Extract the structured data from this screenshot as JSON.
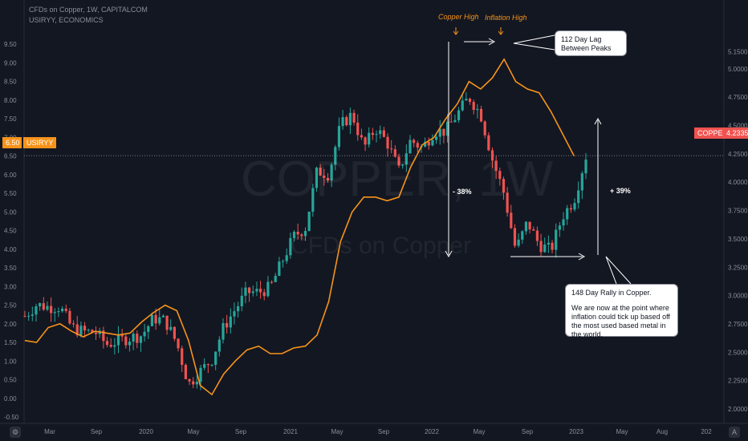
{
  "header": {
    "main_title": "CFDs on Copper, 1W, CAPITALCOM",
    "secondary_title": "USIRYY, ECONOMICS"
  },
  "watermark": {
    "symbol": "COPPER, 1W",
    "description": "CFDs on Copper"
  },
  "price_tags": {
    "left": {
      "label": "6.50",
      "symbol": "USIRYY",
      "color": "#f7931a"
    },
    "right": {
      "label": "COPPER",
      "value": "4.2335",
      "color": "#ef5350"
    }
  },
  "annotations": {
    "copper_high": "Copper High",
    "inflation_high": "Inflation High",
    "lag_callout": "112 Day Lag Between Peaks",
    "drop_pct": "- 38%",
    "rally_pct": "+ 39%",
    "rally_callout_line1": "148 Day Rally in Copper.",
    "rally_callout_line2": "We are now at the point where inflation could tick up based off the most used based metal in the world."
  },
  "corner_buttons": {
    "settings": "⚙",
    "auto": "A"
  },
  "colors": {
    "background": "#131722",
    "up_candle": "#26a69a",
    "down_candle": "#ef5350",
    "inflation_line": "#f7931a",
    "text": "#b2b5be"
  },
  "chart_data": {
    "type": "line",
    "title": "CFDs on Copper, 1W, CAPITALCOM",
    "x_ticks": [
      "Mar",
      "Sep",
      "2020",
      "May",
      "Sep",
      "2021",
      "May",
      "Sep",
      "2022",
      "May",
      "Sep",
      "2023",
      "May",
      "Aug",
      "202"
    ],
    "left_axis": {
      "label": "USIRYY",
      "range": [
        -0.5,
        10.0
      ],
      "ticks": [
        "9.50",
        "9.00",
        "8.50",
        "8.00",
        "7.50",
        "7.00",
        "6.50",
        "6.00",
        "5.50",
        "5.00",
        "4.50",
        "4.00",
        "3.50",
        "3.00",
        "2.50",
        "2.00",
        "1.50",
        "1.00",
        "0.50",
        "0.00",
        "-0.50"
      ]
    },
    "right_axis": {
      "label": "COPPER",
      "range": [
        1.93,
        5.38
      ],
      "ticks": [
        "5.1500",
        "5.0000",
        "4.7500",
        "4.5000",
        "4.2500",
        "4.0000",
        "3.7500",
        "3.5000",
        "3.2500",
        "3.0000",
        "2.7500",
        "2.5000",
        "2.2500",
        "2.0000"
      ]
    },
    "series": [
      {
        "name": "USIRYY",
        "axis": "left",
        "color": "#f7931a",
        "points": [
          [
            "2019-01",
            1.55
          ],
          [
            "2019-02",
            1.5
          ],
          [
            "2019-03",
            1.9
          ],
          [
            "2019-04",
            2.0
          ],
          [
            "2019-05",
            1.8
          ],
          [
            "2019-06",
            1.65
          ],
          [
            "2019-07",
            1.8
          ],
          [
            "2019-08",
            1.75
          ],
          [
            "2019-09",
            1.7
          ],
          [
            "2019-10",
            1.75
          ],
          [
            "2019-11",
            2.05
          ],
          [
            "2019-12",
            2.3
          ],
          [
            "2020-01",
            2.5
          ],
          [
            "2020-02",
            2.35
          ],
          [
            "2020-03",
            1.55
          ],
          [
            "2020-04",
            0.35
          ],
          [
            "2020-05",
            0.1
          ],
          [
            "2020-06",
            0.65
          ],
          [
            "2020-07",
            1.0
          ],
          [
            "2020-08",
            1.3
          ],
          [
            "2020-09",
            1.4
          ],
          [
            "2020-10",
            1.2
          ],
          [
            "2020-11",
            1.2
          ],
          [
            "2020-12",
            1.35
          ],
          [
            "2021-01",
            1.4
          ],
          [
            "2021-02",
            1.7
          ],
          [
            "2021-03",
            2.6
          ],
          [
            "2021-04",
            4.2
          ],
          [
            "2021-05",
            5.0
          ],
          [
            "2021-06",
            5.4
          ],
          [
            "2021-07",
            5.4
          ],
          [
            "2021-08",
            5.3
          ],
          [
            "2021-09",
            5.4
          ],
          [
            "2021-10",
            6.2
          ],
          [
            "2021-11",
            6.8
          ],
          [
            "2021-12",
            7.0
          ],
          [
            "2022-01",
            7.5
          ],
          [
            "2022-02",
            7.9
          ],
          [
            "2022-03",
            8.5
          ],
          [
            "2022-04",
            8.3
          ],
          [
            "2022-05",
            8.6
          ],
          [
            "2022-06",
            9.1
          ],
          [
            "2022-07",
            8.5
          ],
          [
            "2022-08",
            8.3
          ],
          [
            "2022-09",
            8.2
          ],
          [
            "2022-10",
            7.7
          ],
          [
            "2022-11",
            7.1
          ],
          [
            "2022-12",
            6.5
          ]
        ]
      },
      {
        "name": "COPPER",
        "axis": "right",
        "color": "#26a69a",
        "last_value": 4.2335,
        "points": [
          [
            "2019-01",
            2.82
          ],
          [
            "2019-02",
            2.92
          ],
          [
            "2019-03",
            2.9
          ],
          [
            "2019-04",
            2.9
          ],
          [
            "2019-05",
            2.72
          ],
          [
            "2019-06",
            2.68
          ],
          [
            "2019-07",
            2.68
          ],
          [
            "2019-08",
            2.57
          ],
          [
            "2019-09",
            2.6
          ],
          [
            "2019-10",
            2.63
          ],
          [
            "2019-11",
            2.65
          ],
          [
            "2019-12",
            2.8
          ],
          [
            "2020-01",
            2.78
          ],
          [
            "2020-02",
            2.58
          ],
          [
            "2020-03",
            2.22
          ],
          [
            "2020-04",
            2.33
          ],
          [
            "2020-05",
            2.44
          ],
          [
            "2020-06",
            2.72
          ],
          [
            "2020-07",
            2.88
          ],
          [
            "2020-08",
            3.03
          ],
          [
            "2020-09",
            3.03
          ],
          [
            "2020-10",
            3.07
          ],
          [
            "2020-11",
            3.3
          ],
          [
            "2020-12",
            3.52
          ],
          [
            "2021-01",
            3.6
          ],
          [
            "2021-02",
            4.1
          ],
          [
            "2021-03",
            4.07
          ],
          [
            "2021-04",
            4.5
          ],
          [
            "2021-05",
            4.6
          ],
          [
            "2021-06",
            4.3
          ],
          [
            "2021-07",
            4.48
          ],
          [
            "2021-08",
            4.35
          ],
          [
            "2021-09",
            4.1
          ],
          [
            "2021-10",
            4.37
          ],
          [
            "2021-11",
            4.3
          ],
          [
            "2021-12",
            4.45
          ],
          [
            "2022-01",
            4.45
          ],
          [
            "2022-02",
            4.6
          ],
          [
            "2022-03",
            4.75
          ],
          [
            "2022-04",
            4.6
          ],
          [
            "2022-05",
            4.2
          ],
          [
            "2022-06",
            3.9
          ],
          [
            "2022-07",
            3.4
          ],
          [
            "2022-08",
            3.65
          ],
          [
            "2022-09",
            3.45
          ],
          [
            "2022-10",
            3.4
          ],
          [
            "2022-11",
            3.7
          ],
          [
            "2022-12",
            3.85
          ],
          [
            "2023-01",
            4.23
          ]
        ]
      }
    ],
    "grid": false,
    "legend": "none"
  }
}
